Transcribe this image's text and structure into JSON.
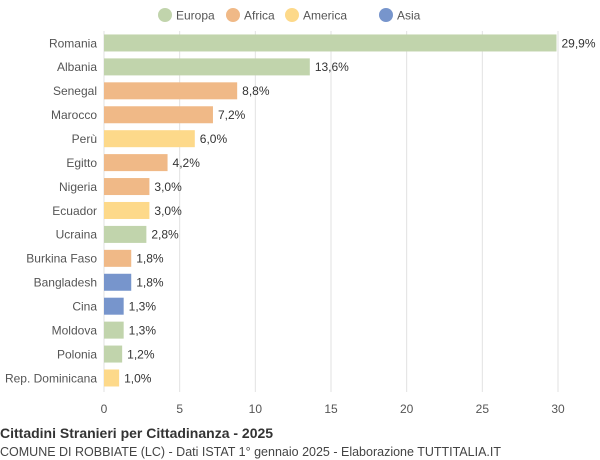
{
  "chart_data": {
    "type": "bar",
    "orientation": "horizontal",
    "title": "Cittadini Stranieri per Cittadinanza - 2025",
    "subtitle": "COMUNE DI ROBBIATE (LC) - Dati ISTAT 1° gennaio 2025 - Elaborazione TUTTITALIA.IT",
    "legend": {
      "position": "top",
      "entries": [
        {
          "name": "Europa",
          "color": "#c1d4ac"
        },
        {
          "name": "Africa",
          "color": "#f0b987"
        },
        {
          "name": "America",
          "color": "#fdd98a"
        },
        {
          "name": "Asia",
          "color": "#7795cc"
        }
      ]
    },
    "categories": [
      "Romania",
      "Albania",
      "Senegal",
      "Marocco",
      "Perù",
      "Egitto",
      "Nigeria",
      "Ecuador",
      "Ucraina",
      "Burkina Faso",
      "Bangladesh",
      "Cina",
      "Moldova",
      "Polonia",
      "Rep. Dominicana"
    ],
    "values": [
      29.9,
      13.6,
      8.8,
      7.2,
      6.0,
      4.2,
      3.0,
      3.0,
      2.8,
      1.8,
      1.8,
      1.3,
      1.3,
      1.2,
      1.0
    ],
    "value_labels": [
      "29,9%",
      "13,6%",
      "8,8%",
      "7,2%",
      "6,0%",
      "4,2%",
      "3,0%",
      "3,0%",
      "2,8%",
      "1,8%",
      "1,8%",
      "1,3%",
      "1,3%",
      "1,2%",
      "1,0%"
    ],
    "groups": [
      "Europa",
      "Europa",
      "Africa",
      "Africa",
      "America",
      "Africa",
      "Africa",
      "America",
      "Europa",
      "Africa",
      "Asia",
      "Asia",
      "Europa",
      "Europa",
      "America"
    ],
    "xlim": [
      0,
      30
    ],
    "xticks": [
      0,
      5,
      10,
      15,
      20,
      25,
      30
    ],
    "grid": true
  }
}
